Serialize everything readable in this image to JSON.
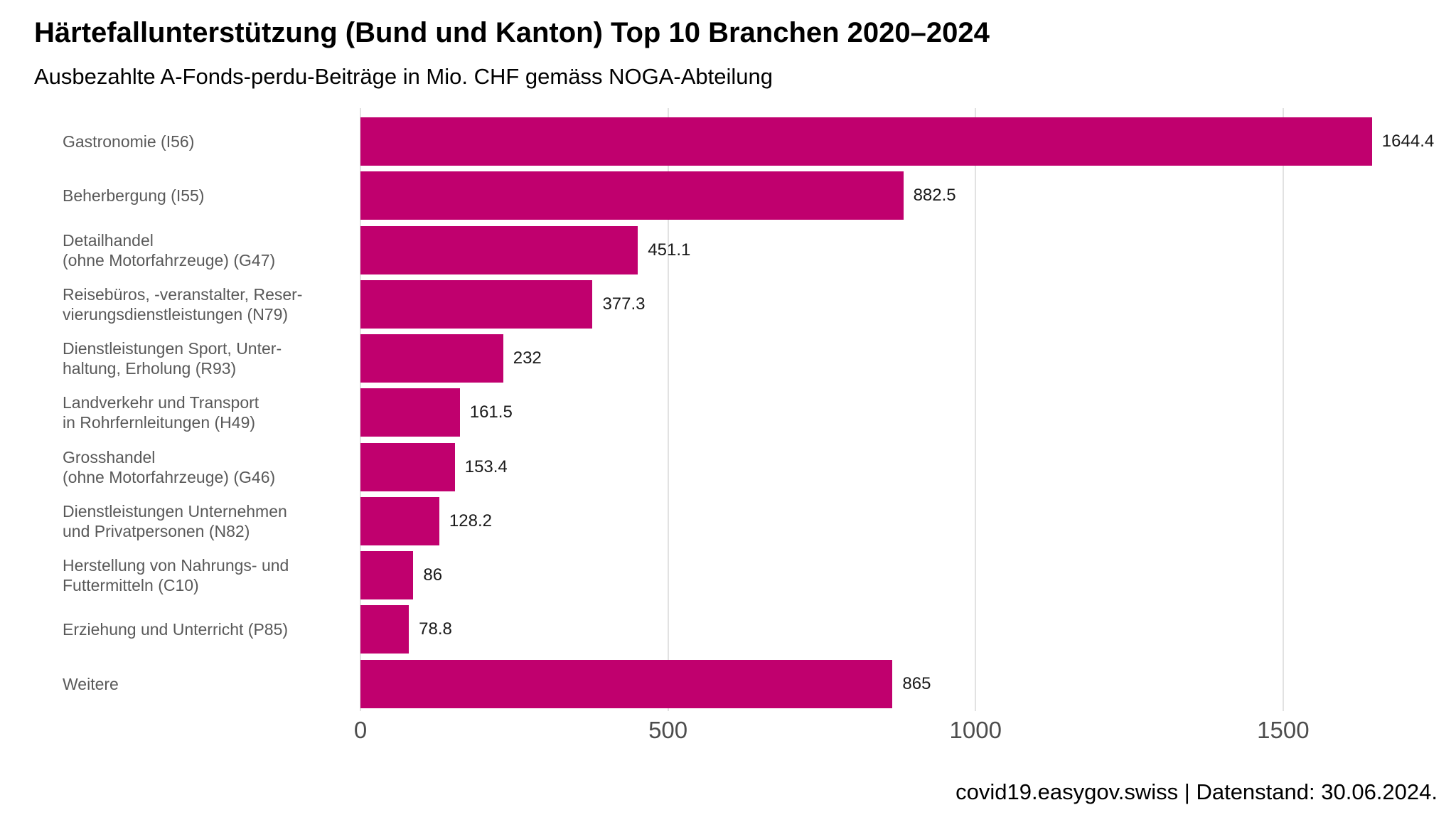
{
  "header": {
    "title": "Härtefallunterstützung (Bund und Kanton) Top 10 Branchen 2020–2024",
    "subtitle": "Ausbezahlte A-Fonds-perdu-Beiträge in Mio. CHF gemäss NOGA-Abteilung"
  },
  "chart_data": {
    "type": "bar",
    "orientation": "horizontal",
    "title": "Härtefallunterstützung (Bund und Kanton) Top 10 Branchen 2020–2024",
    "subtitle": "Ausbezahlte A-Fonds-perdu-Beiträge in Mio. CHF gemäss NOGA-Abteilung",
    "xlabel": "",
    "ylabel": "",
    "categories": [
      "Gastronomie (I56)",
      "Beherbergung (I55)",
      "Detailhandel\n(ohne Motorfahrzeuge) (G47)",
      "Reisebüros, -veranstalter, Reser-\nvierungsdienstleistungen (N79)",
      "Dienstleistungen Sport, Unter-\nhaltung, Erholung (R93)",
      "Landverkehr und Transport\nin Rohrfernleitungen (H49)",
      "Grosshandel\n(ohne Motorfahrzeuge) (G46)",
      "Dienstleistungen Unternehmen\nund Privatpersonen (N82)",
      "Herstellung von Nahrungs- und\nFuttermitteln (C10)",
      "Erziehung und Unterricht (P85)",
      "Weitere"
    ],
    "values": [
      1644.4,
      882.5,
      451.1,
      377.3,
      232,
      161.5,
      153.4,
      128.2,
      86,
      78.8,
      865
    ],
    "value_labels": [
      "1644.4",
      "882.5",
      "451.1",
      "377.3",
      "232",
      "161.5",
      "153.4",
      "128.2",
      "86",
      "78.8",
      "865"
    ],
    "xticks": [
      0,
      500,
      1000,
      1500
    ],
    "xtick_labels": [
      "0",
      "500",
      "1000",
      "1500"
    ],
    "xlim": [
      0,
      1781
    ],
    "grid": "vertical",
    "legend": "none",
    "bar_color": "#c0006e"
  },
  "footer": {
    "source": "covid19.easygov.swiss | Datenstand: 30.06.2024."
  }
}
